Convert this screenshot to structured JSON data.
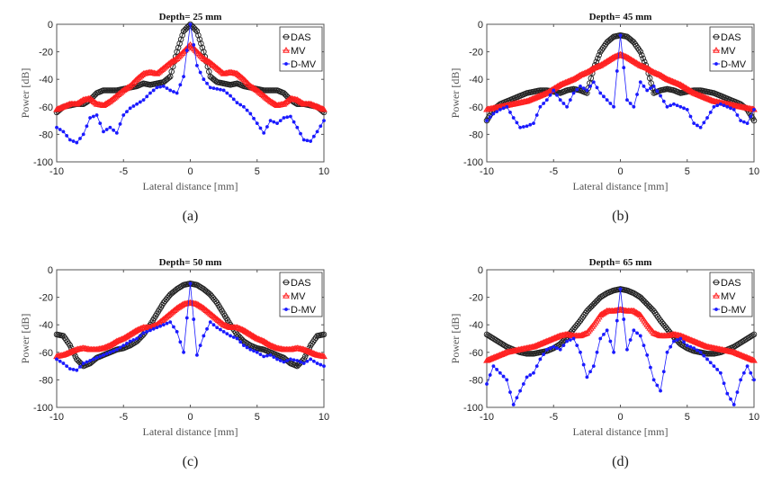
{
  "chart_data": [
    {
      "type": "line",
      "caption": "(a)",
      "title": "Depth= 25 mm",
      "xlabel": "Lateral distance [mm]",
      "ylabel": "Power [dB]",
      "xlim": [
        -10,
        10
      ],
      "ylim": [
        -100,
        0
      ],
      "xticks": [
        -10,
        -5,
        0,
        5,
        10
      ],
      "yticks": [
        0,
        -20,
        -40,
        -60,
        -80,
        -100
      ],
      "legend": "top-right",
      "x": [
        -10,
        -9.5,
        -9,
        -8.5,
        -8,
        -7.5,
        -7,
        -6.5,
        -6,
        -5.5,
        -5,
        -4.5,
        -4,
        -3.5,
        -3,
        -2.5,
        -2,
        -1.5,
        -1,
        -0.5,
        0,
        0.5,
        1,
        1.5,
        2,
        2.5,
        3,
        3.5,
        4,
        4.5,
        5,
        5.5,
        6,
        6.5,
        7,
        7.5,
        8,
        8.5,
        9,
        9.5,
        10
      ],
      "series": [
        {
          "name": "DAS",
          "values": [
            -64,
            -60,
            -59,
            -58,
            -58,
            -55,
            -50,
            -48,
            -48,
            -48,
            -47,
            -46,
            -45,
            -43,
            -44,
            -43,
            -42,
            -38,
            -20,
            -5,
            0,
            -5,
            -20,
            -38,
            -42,
            -43,
            -44,
            -43,
            -45,
            -46,
            -47,
            -48,
            -48,
            -48,
            -50,
            -55,
            -58,
            -58,
            -59,
            -60,
            -64
          ]
        },
        {
          "name": "MV",
          "values": [
            -62,
            -60,
            -58,
            -58,
            -55,
            -54,
            -58,
            -59,
            -56,
            -52,
            -48,
            -45,
            -40,
            -36,
            -35,
            -36,
            -32,
            -28,
            -25,
            -20,
            -15,
            -20,
            -25,
            -28,
            -32,
            -36,
            -35,
            -36,
            -40,
            -45,
            -48,
            -52,
            -56,
            -59,
            -58,
            -54,
            -55,
            -58,
            -58,
            -60,
            -62
          ]
        },
        {
          "name": "D-MV",
          "values": [
            -75,
            -78,
            -84,
            -86,
            -80,
            -68,
            -66,
            -78,
            -75,
            -79,
            -66,
            -61,
            -58,
            -55,
            -50,
            -46,
            -45,
            -48,
            -50,
            -38,
            0,
            -30,
            -40,
            -46,
            -47,
            -48,
            -52,
            -57,
            -60,
            -65,
            -72,
            -79,
            -70,
            -72,
            -68,
            -67,
            -75,
            -84,
            -85,
            -78,
            -70
          ]
        }
      ]
    },
    {
      "type": "line",
      "caption": "(b)",
      "title": "Depth= 45 mm",
      "xlabel": "Lateral distance [mm]",
      "ylabel": "Power [dB]",
      "xlim": [
        -10,
        10
      ],
      "ylim": [
        -100,
        0
      ],
      "xticks": [
        -10,
        -5,
        0,
        5,
        10
      ],
      "yticks": [
        0,
        -20,
        -40,
        -60,
        -80,
        -100
      ],
      "legend": "top-right",
      "x": [
        -10,
        -9.5,
        -9,
        -8.5,
        -8,
        -7.5,
        -7,
        -6.5,
        -6,
        -5.5,
        -5,
        -4.5,
        -4,
        -3.5,
        -3,
        -2.5,
        -2,
        -1.5,
        -1,
        -0.5,
        0,
        0.5,
        1,
        1.5,
        2,
        2.5,
        3,
        3.5,
        4,
        4.5,
        5,
        5.5,
        6,
        6.5,
        7,
        7.5,
        8,
        8.5,
        9,
        9.5,
        10
      ],
      "series": [
        {
          "name": "DAS",
          "values": [
            -70,
            -62,
            -58,
            -56,
            -54,
            -52,
            -50,
            -49,
            -48,
            -48,
            -49,
            -50,
            -48,
            -47,
            -48,
            -50,
            -32,
            -20,
            -13,
            -9,
            -8,
            -9,
            -13,
            -20,
            -32,
            -50,
            -48,
            -47,
            -48,
            -50,
            -49,
            -48,
            -48,
            -49,
            -50,
            -52,
            -54,
            -56,
            -58,
            -62,
            -70
          ]
        },
        {
          "name": "MV",
          "values": [
            -62,
            -61,
            -60,
            -59,
            -58,
            -57,
            -56,
            -54,
            -52,
            -50,
            -47,
            -44,
            -42,
            -40,
            -37,
            -35,
            -32,
            -30,
            -27,
            -24,
            -22,
            -24,
            -27,
            -30,
            -32,
            -35,
            -37,
            -40,
            -42,
            -44,
            -47,
            -50,
            -52,
            -54,
            -56,
            -57,
            -58,
            -59,
            -60,
            -61,
            -62
          ]
        },
        {
          "name": "D-MV",
          "values": [
            -70,
            -65,
            -62,
            -60,
            -68,
            -75,
            -74,
            -72,
            -60,
            -55,
            -48,
            -55,
            -60,
            -50,
            -45,
            -48,
            -42,
            -50,
            -55,
            -60,
            -8,
            -55,
            -60,
            -42,
            -48,
            -45,
            -52,
            -60,
            -58,
            -60,
            -62,
            -72,
            -75,
            -68,
            -60,
            -58,
            -60,
            -62,
            -70,
            -72,
            -62
          ]
        }
      ]
    },
    {
      "type": "line",
      "caption": "(c)",
      "title": "Depth= 50 mm",
      "xlabel": "Lateral distance [mm]",
      "ylabel": "Power [dB]",
      "xlim": [
        -10,
        10
      ],
      "ylim": [
        -100,
        0
      ],
      "xticks": [
        -10,
        -5,
        0,
        5,
        10
      ],
      "yticks": [
        0,
        -20,
        -40,
        -60,
        -80,
        -100
      ],
      "legend": "top-right",
      "x": [
        -10,
        -9.5,
        -9,
        -8.5,
        -8,
        -7.5,
        -7,
        -6.5,
        -6,
        -5.5,
        -5,
        -4.5,
        -4,
        -3.5,
        -3,
        -2.5,
        -2,
        -1.5,
        -1,
        -0.5,
        0,
        0.5,
        1,
        1.5,
        2,
        2.5,
        3,
        3.5,
        4,
        4.5,
        5,
        5.5,
        6,
        6.5,
        7,
        7.5,
        8,
        8.5,
        9,
        9.5,
        10
      ],
      "series": [
        {
          "name": "DAS",
          "values": [
            -47,
            -48,
            -55,
            -65,
            -70,
            -68,
            -64,
            -62,
            -60,
            -58,
            -57,
            -55,
            -52,
            -47,
            -40,
            -32,
            -24,
            -18,
            -14,
            -11,
            -10,
            -11,
            -14,
            -18,
            -24,
            -32,
            -40,
            -47,
            -52,
            -55,
            -57,
            -58,
            -60,
            -62,
            -64,
            -68,
            -70,
            -65,
            -55,
            -48,
            -47
          ]
        },
        {
          "name": "MV",
          "values": [
            -63,
            -62,
            -60,
            -58,
            -57,
            -58,
            -58,
            -57,
            -55,
            -52,
            -50,
            -47,
            -44,
            -42,
            -42,
            -40,
            -36,
            -32,
            -28,
            -25,
            -24,
            -25,
            -28,
            -32,
            -36,
            -40,
            -42,
            -42,
            -44,
            -47,
            -50,
            -52,
            -55,
            -57,
            -58,
            -58,
            -57,
            -58,
            -60,
            -62,
            -63
          ]
        },
        {
          "name": "D-MV",
          "values": [
            -65,
            -68,
            -72,
            -73,
            -68,
            -66,
            -64,
            -62,
            -60,
            -58,
            -55,
            -52,
            -50,
            -46,
            -44,
            -42,
            -40,
            -38,
            -45,
            -60,
            -10,
            -62,
            -48,
            -38,
            -42,
            -45,
            -48,
            -50,
            -55,
            -58,
            -60,
            -63,
            -62,
            -65,
            -67,
            -65,
            -66,
            -68,
            -65,
            -68,
            -70
          ]
        }
      ]
    },
    {
      "type": "line",
      "caption": "(d)",
      "title": "Depth= 65 mm",
      "xlabel": "Lateral distance [mm]",
      "ylabel": "Power [dB]",
      "xlim": [
        -10,
        10
      ],
      "ylim": [
        -100,
        0
      ],
      "xticks": [
        -10,
        -5,
        0,
        5,
        10
      ],
      "yticks": [
        0,
        -20,
        -40,
        -60,
        -80,
        -100
      ],
      "legend": "top-right",
      "x": [
        -10,
        -9.5,
        -9,
        -8.5,
        -8,
        -7.5,
        -7,
        -6.5,
        -6,
        -5.5,
        -5,
        -4.5,
        -4,
        -3.5,
        -3,
        -2.5,
        -2,
        -1.5,
        -1,
        -0.5,
        0,
        0.5,
        1,
        1.5,
        2,
        2.5,
        3,
        3.5,
        4,
        4.5,
        5,
        5.5,
        6,
        6.5,
        7,
        7.5,
        8,
        8.5,
        9,
        9.5,
        10
      ],
      "series": [
        {
          "name": "DAS",
          "values": [
            -47,
            -50,
            -53,
            -56,
            -58,
            -60,
            -61,
            -61,
            -60,
            -59,
            -57,
            -54,
            -49,
            -43,
            -37,
            -30,
            -25,
            -20,
            -17,
            -15,
            -14,
            -15,
            -17,
            -20,
            -25,
            -30,
            -37,
            -43,
            -49,
            -54,
            -57,
            -59,
            -60,
            -61,
            -61,
            -60,
            -58,
            -56,
            -53,
            -50,
            -47
          ]
        },
        {
          "name": "MV",
          "values": [
            -66,
            -64,
            -62,
            -60,
            -59,
            -58,
            -57,
            -56,
            -54,
            -52,
            -50,
            -48,
            -47,
            -48,
            -48,
            -46,
            -40,
            -33,
            -30,
            -30,
            -29,
            -30,
            -30,
            -33,
            -40,
            -46,
            -48,
            -48,
            -47,
            -48,
            -50,
            -52,
            -54,
            -56,
            -57,
            -58,
            -59,
            -60,
            -62,
            -64,
            -66
          ]
        },
        {
          "name": "D-MV",
          "values": [
            -83,
            -70,
            -75,
            -80,
            -98,
            -88,
            -78,
            -75,
            -65,
            -58,
            -56,
            -58,
            -52,
            -50,
            -60,
            -78,
            -70,
            -50,
            -44,
            -60,
            -14,
            -58,
            -44,
            -48,
            -62,
            -80,
            -88,
            -60,
            -52,
            -50,
            -55,
            -57,
            -60,
            -65,
            -70,
            -75,
            -90,
            -98,
            -80,
            -70,
            -80
          ]
        }
      ]
    }
  ],
  "colors": {
    "DAS": "#222222",
    "MV": "#ff2020",
    "D-MV": "#1a1aff"
  }
}
